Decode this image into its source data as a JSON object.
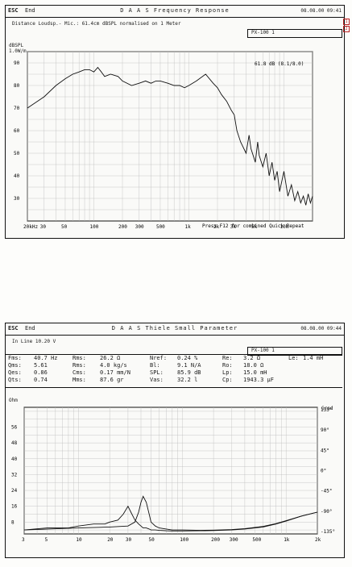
{
  "fr": {
    "esc": "ESC",
    "end": "End",
    "title": "D A A S  Frequency Response",
    "timestamp": "08.08.00 09:41",
    "info_line": "Distance Loudsp.- Mic.: 61.4cm dBSPL normalised on 1 Meter",
    "model": "PX-100 1",
    "ylabel_top": "dBSPL",
    "ylabel_unit": "1.0W/m",
    "legend": "61.8 dB (8.1/8.0)",
    "footer": "Press F12 for combined Quick Repeat",
    "side_marks": [
      "1",
      "2"
    ]
  },
  "ts": {
    "esc": "ESC",
    "end": "End",
    "title": "D A A S  Thiele Small Parameter",
    "timestamp": "08.08.00 09:44",
    "info_line": "In Line  10.20 V",
    "model": "PX-100 1",
    "ylabel_left": "Ohm",
    "ylabel_right": "Grad",
    "params": [
      {
        "k": "Fms:",
        "v": "40.7 Hz"
      },
      {
        "k": "Rms:",
        "v": "26.2 Ω"
      },
      {
        "k": "Nref:",
        "v": "0.24 %"
      },
      {
        "k": "Re:",
        "v": "3.2 Ω"
      },
      {
        "k": "Le:",
        "v": "1.4 mH"
      },
      {
        "k": "Qms:",
        "v": "5.61"
      },
      {
        "k": "Rms:",
        "v": "4.0 kg/s"
      },
      {
        "k": "Bl:",
        "v": "9.1 N/A"
      },
      {
        "k": "Ro:",
        "v": "18.0 Ω"
      },
      {
        "k": "Qes:",
        "v": "0.86"
      },
      {
        "k": "Cms:",
        "v": "0.17 mm/N"
      },
      {
        "k": "SPL:",
        "v": "85.9 dB"
      },
      {
        "k": "Lp:",
        "v": "15.0 mH"
      },
      {
        "k": "Qts:",
        "v": "0.74"
      },
      {
        "k": "Mms:",
        "v": "87.6 gr"
      },
      {
        "k": "Vas:",
        "v": "32.2 l"
      },
      {
        "k": "Cp:",
        "v": "1943.3 µF"
      }
    ]
  },
  "chart_data": [
    {
      "type": "line",
      "title": "D A A S  Frequency Response",
      "xlabel": "",
      "ylabel": "dBSPL 1.0W/m",
      "x_scale": "log",
      "xlim": [
        20,
        20000
      ],
      "ylim": [
        20,
        95
      ],
      "grid": true,
      "x_ticks": [
        "30",
        "50",
        "100",
        "200",
        "300",
        "500",
        "1k",
        "2k",
        "3k",
        "5k",
        "10k",
        "20kHz"
      ],
      "y_ticks": [
        "90",
        "80",
        "70",
        "60",
        "50",
        "40",
        "30"
      ],
      "series": [
        {
          "name": "",
          "x": [
            20,
            30,
            40,
            50,
            60,
            70,
            80,
            90,
            100,
            110,
            120,
            130,
            150,
            180,
            200,
            250,
            300,
            350,
            400,
            450,
            500,
            600,
            700,
            800,
            900,
            1000,
            1200,
            1500,
            1800,
            2000,
            2200,
            2500,
            2800,
            3000,
            3200,
            3500,
            4000,
            4300,
            4500,
            5000,
            5300,
            5500,
            6000,
            6500,
            7000,
            7500,
            8000,
            8500,
            9000,
            10000,
            11000,
            12000,
            13000,
            14000,
            15000,
            16000,
            17000,
            18000,
            19000,
            20000
          ],
          "y": [
            70,
            75,
            80,
            83,
            85,
            86,
            87,
            87,
            86,
            88,
            86,
            84,
            85,
            84,
            82,
            80,
            81,
            82,
            81,
            82,
            82,
            81,
            80,
            80,
            79,
            80,
            82,
            85,
            81,
            79,
            76,
            73,
            69,
            67,
            60,
            55,
            50,
            58,
            52,
            46,
            55,
            49,
            44,
            50,
            40,
            46,
            38,
            42,
            33,
            42,
            31,
            36,
            29,
            33,
            28,
            31,
            27,
            32,
            28,
            31
          ]
        }
      ]
    },
    {
      "type": "line",
      "title": "D A A S  Thiele Small Parameter",
      "xlabel": "",
      "ylabel": "Ohm",
      "y2label": "Grad",
      "x_scale": "log",
      "xlim": [
        3,
        2000
      ],
      "ylim": [
        2,
        66
      ],
      "y2lim": [
        -140,
        140
      ],
      "grid": true,
      "x_ticks": [
        "3",
        "5",
        "10",
        "20",
        "30",
        "50",
        "100",
        "200",
        "300",
        "500",
        "1k",
        "2k"
      ],
      "y_ticks": [
        "56",
        "48",
        "40",
        "32",
        "24",
        "16",
        "8"
      ],
      "y2_ticks": [
        "135°",
        "90°",
        "45°",
        "0°",
        "-45°",
        "-90°",
        "-135°"
      ],
      "series": [
        {
          "name": "",
          "x": [
            3,
            5,
            8,
            10,
            14,
            18,
            20,
            24,
            27,
            30,
            32,
            35,
            38,
            40,
            42,
            45,
            48,
            50,
            55,
            60,
            70,
            80,
            100,
            150,
            200,
            300,
            400,
            600,
            800,
            1000,
            1400,
            2000
          ],
          "y": [
            4,
            5,
            5,
            6,
            7,
            7,
            8,
            9,
            12,
            16,
            13,
            9,
            7,
            6,
            5,
            5,
            4.5,
            4,
            4,
            3.8,
            3.6,
            3.5,
            3.5,
            3.6,
            3.7,
            4,
            4.5,
            5.5,
            7,
            8.5,
            11,
            13
          ]
        },
        {
          "name": "",
          "x": [
            3,
            10,
            20,
            30,
            35,
            38,
            40,
            42,
            45,
            48,
            50,
            55,
            60,
            70,
            80,
            100,
            150,
            200,
            300,
            400,
            600,
            800,
            1000,
            1400,
            2000
          ],
          "y": [
            4,
            5,
            5.5,
            6,
            8,
            13,
            18,
            21,
            18,
            12,
            8,
            6,
            5,
            4.5,
            4,
            4,
            3.8,
            3.9,
            4.2,
            4.7,
            5.8,
            7.2,
            8.7,
            11,
            13
          ]
        }
      ]
    }
  ]
}
